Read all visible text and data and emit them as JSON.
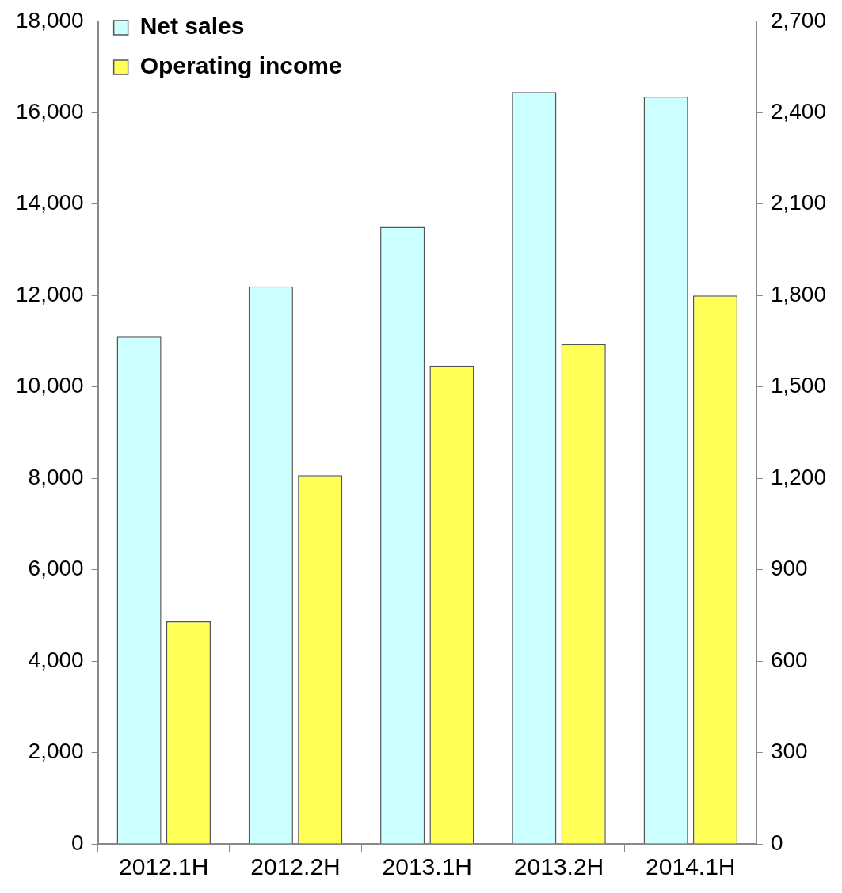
{
  "chart_data": {
    "type": "bar",
    "categories": [
      "2012.1H",
      "2012.2H",
      "2013.1H",
      "2013.2H",
      "2014.1H"
    ],
    "series": [
      {
        "name": "Net sales",
        "color": "#ccffff",
        "values": [
          11100,
          12200,
          13500,
          16450,
          16350
        ]
      },
      {
        "name": "Operating income",
        "color": "#ffff55",
        "axis": "y2",
        "values": [
          730,
          1210,
          1570,
          1640,
          1800
        ]
      }
    ],
    "ylim": [
      0,
      18000
    ],
    "yticks": [
      {
        "value": 0,
        "label": "0"
      },
      {
        "value": 2000,
        "label": "2,000"
      },
      {
        "value": 4000,
        "label": "4,000"
      },
      {
        "value": 6000,
        "label": "6,000"
      },
      {
        "value": 8000,
        "label": "8,000"
      },
      {
        "value": 10000,
        "label": "10,000"
      },
      {
        "value": 12000,
        "label": "12,000"
      },
      {
        "value": 14000,
        "label": "14,000"
      },
      {
        "value": 16000,
        "label": "16,000"
      },
      {
        "value": 18000,
        "label": "18,000"
      }
    ],
    "y2lim": [
      0,
      2700
    ],
    "y2ticks": [
      0,
      300,
      600,
      900,
      {
        "value": 1200,
        "label": "1,200"
      },
      {
        "value": 1500,
        "label": "1,500"
      },
      {
        "value": 1800,
        "label": "1,800"
      },
      {
        "value": 2100,
        "label": "2,100"
      },
      {
        "value": 2400,
        "label": "2,400"
      },
      {
        "value": 2700,
        "label": "2,700"
      }
    ],
    "grid": false,
    "legend": "top left"
  }
}
